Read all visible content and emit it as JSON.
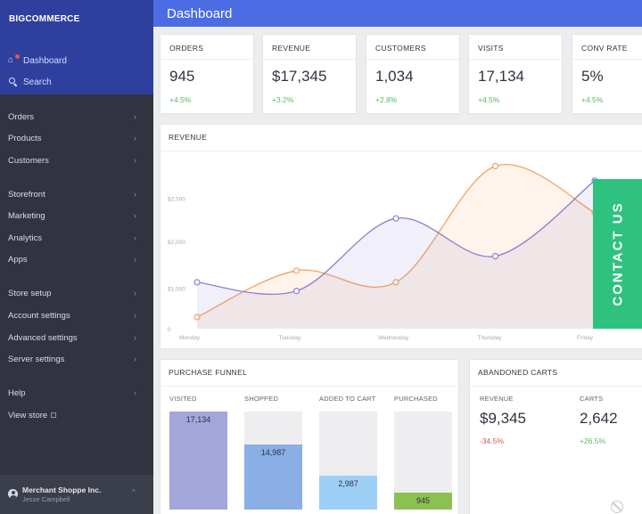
{
  "brand": {
    "logo_prefix": "BIG",
    "logo_suffix": "COMMERCE"
  },
  "sidebar": {
    "top_links": [
      {
        "label": "Dashboard",
        "icon": "home-icon"
      },
      {
        "label": "Search",
        "icon": "search-icon"
      }
    ],
    "items": [
      {
        "label": "Orders"
      },
      {
        "label": "Products"
      },
      {
        "label": "Customers"
      },
      {
        "label": "Storefront"
      },
      {
        "label": "Marketing"
      },
      {
        "label": "Analytics"
      },
      {
        "label": "Apps"
      },
      {
        "label": "Store setup"
      },
      {
        "label": "Account settings"
      },
      {
        "label": "Advanced settings"
      },
      {
        "label": "Server settings"
      },
      {
        "label": "Help"
      },
      {
        "label": "View store"
      }
    ],
    "account": {
      "name": "Merchant Shoppe Inc.",
      "user": "Jesse Campbell"
    }
  },
  "header": {
    "title": "Dashboard"
  },
  "stats": [
    {
      "label": "ORDERS",
      "value": "945",
      "change": "+4.5%"
    },
    {
      "label": "REVENUE",
      "value": "$17,345",
      "change": "+3.2%"
    },
    {
      "label": "CUSTOMERS",
      "value": "1,034",
      "change": "+2.8%"
    },
    {
      "label": "VISITS",
      "value": "17,134",
      "change": "+4.5%"
    },
    {
      "label": "CONV RATE",
      "value": "5%",
      "change": "+4.5%"
    }
  ],
  "revenue_panel": {
    "title": "REVENUE"
  },
  "contact": {
    "label": "CONTACT US"
  },
  "chart_data": {
    "type": "line",
    "title": "REVENUE",
    "categories": [
      "Monday",
      "Tuesday",
      "Wednesday",
      "Thursday",
      "Friday"
    ],
    "y_ticks": [
      "0",
      "$1,500",
      "$2,000",
      "$2,500"
    ],
    "series": [
      {
        "values": [
          200,
          1000,
          800,
          2800,
          2000
        ],
        "color": "#f5a25d"
      },
      {
        "values": [
          800,
          650,
          1900,
          1250,
          2550
        ],
        "color": "#8c7fcf"
      }
    ],
    "ylim": [
      0,
      2900
    ],
    "grid": false
  },
  "funnel": {
    "title": "PURCHASE FUNNEL",
    "stages": [
      {
        "label": "VISITED",
        "value": "17,134",
        "fraction": 1.0,
        "color": "#a3a6da"
      },
      {
        "label": "SHOPPED",
        "value": "14,987",
        "fraction": 0.66,
        "color": "#8aaee6"
      },
      {
        "label": "ADDED TO CART",
        "value": "2,987",
        "fraction": 0.35,
        "color": "#9ecff7"
      },
      {
        "label": "PURCHASED",
        "value": "945",
        "fraction": 0.17,
        "color": "#8cc152"
      }
    ]
  },
  "abandoned": {
    "title": "ABANDONED CARTS",
    "revenue_label": "REVENUE",
    "revenue_value": "$9,345",
    "revenue_change": "-34.5%",
    "carts_label": "CARTS",
    "carts_value": "2,642",
    "carts_change": "+26.5%"
  }
}
